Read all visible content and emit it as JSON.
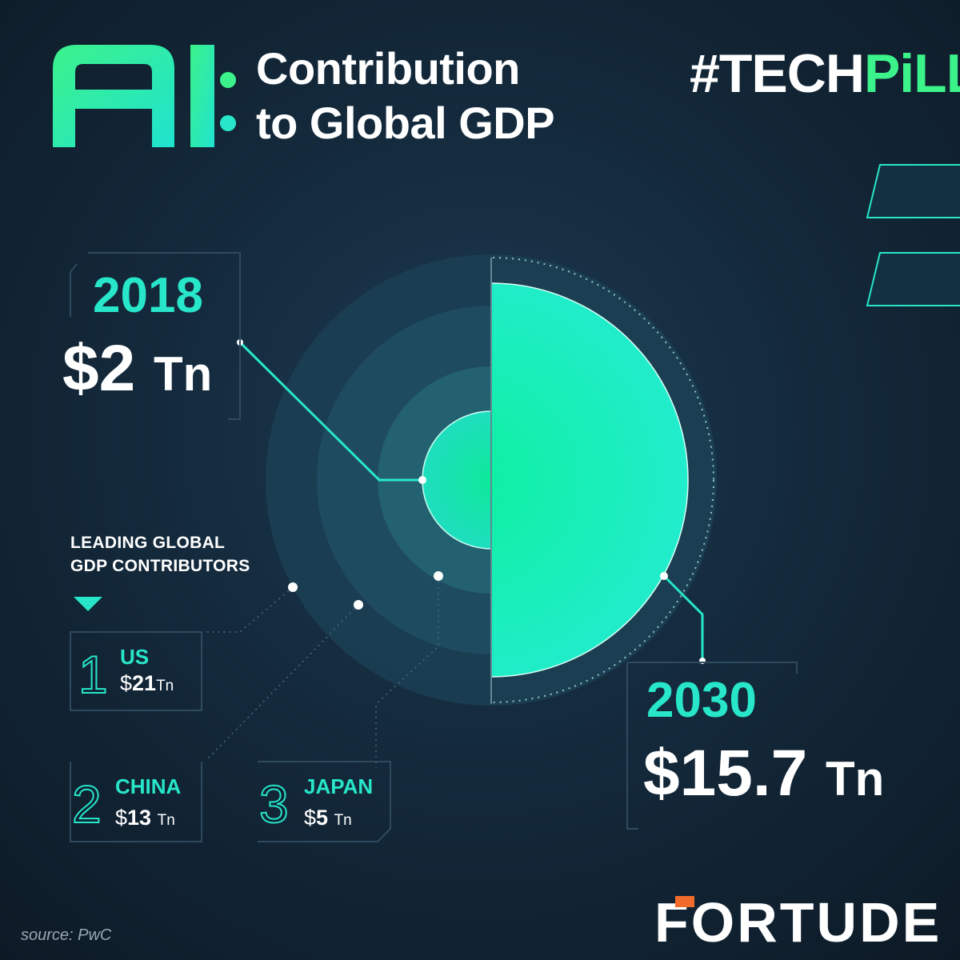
{
  "header": {
    "logo_text": "AI",
    "title_line1": "Contribution",
    "title_line2": "to Global GDP",
    "hashtag_main": "#TECH",
    "hashtag_accent": "PiLL"
  },
  "stat_2018": {
    "year": "2018",
    "value": "$2",
    "unit": "Tn"
  },
  "stat_2030": {
    "year": "2030",
    "value": "$15.7",
    "unit": "Tn"
  },
  "contributors": {
    "heading_line1": "LEADING GLOBAL",
    "heading_line2": "GDP CONTRIBUTORS",
    "items": [
      {
        "rank": "1",
        "country": "US",
        "currency": "$",
        "value": "21",
        "unit": "Tn"
      },
      {
        "rank": "2",
        "country": "CHINA",
        "currency": "$",
        "value": "13",
        "unit": "Tn"
      },
      {
        "rank": "3",
        "country": "JAPAN",
        "currency": "$",
        "value": "5",
        "unit": "Tn"
      }
    ]
  },
  "footer": {
    "brand": "FORTUDE",
    "source": "source: PwC"
  },
  "colors": {
    "accent_teal": "#27e6c9",
    "accent_green": "#3cf28a",
    "background": "#142a3c",
    "circle_fill": "#1ff0b4"
  }
}
